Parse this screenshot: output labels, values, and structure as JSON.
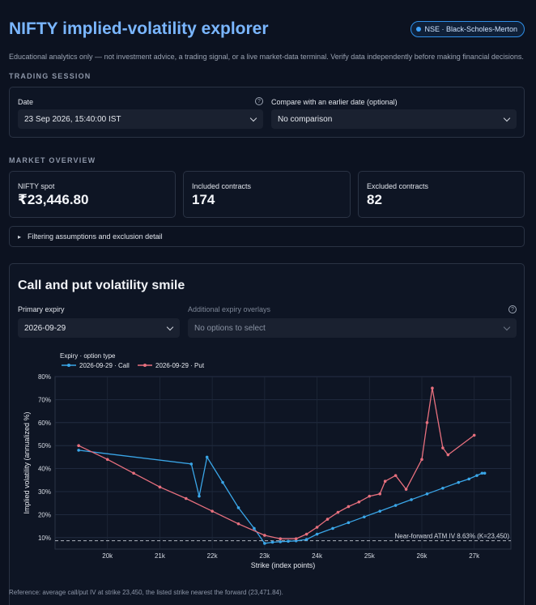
{
  "header": {
    "title": "NIFTY implied-volatility explorer",
    "badge": "NSE · Black-Scholes-Merton",
    "disclaimer": "Educational analytics only — not investment advice, a trading signal, or a live market-data terminal. Verify data independently before making financial decisions."
  },
  "session": {
    "section_label": "TRADING SESSION",
    "date_label": "Date",
    "date_value": "23 Sep 2026, 15:40:00 IST",
    "compare_label": "Compare with an earlier date (optional)",
    "compare_value": "No comparison"
  },
  "overview": {
    "section_label": "MARKET OVERVIEW",
    "metrics": [
      {
        "label": "NIFTY spot",
        "value": "₹23,446.80"
      },
      {
        "label": "Included contracts",
        "value": "174"
      },
      {
        "label": "Excluded contracts",
        "value": "82"
      }
    ],
    "expander": "Filtering assumptions and exclusion detail"
  },
  "smile": {
    "title": "Call and put volatility smile",
    "primary_label": "Primary expiry",
    "primary_value": "2026-09-29",
    "overlay_label": "Additional expiry overlays",
    "overlay_placeholder": "No options to select"
  },
  "chart_data": {
    "type": "line",
    "legend_title": "Expiry · option type",
    "xlabel": "Strike (index points)",
    "ylabel": "Implied volatility (annualized %)",
    "xlim": [
      19000,
      27700
    ],
    "ylim": [
      5,
      80
    ],
    "x_ticks": [
      20000,
      21000,
      22000,
      23000,
      24000,
      25000,
      26000,
      27000
    ],
    "x_tick_labels": [
      "20k",
      "21k",
      "22k",
      "23k",
      "24k",
      "25k",
      "26k",
      "27k"
    ],
    "y_ticks": [
      10,
      20,
      30,
      40,
      50,
      60,
      70,
      80
    ],
    "y_tick_labels": [
      "10%",
      "20%",
      "30%",
      "40%",
      "50%",
      "60%",
      "70%",
      "80%"
    ],
    "grid": true,
    "legend_position": "top-left",
    "reference_line": {
      "value": 8.63,
      "label": "Near-forward ATM IV 8.63% (K=23,450)"
    },
    "series": [
      {
        "name": "2026-09-29 · Call",
        "color": "#3aa6e8",
        "x": [
          19450,
          21600,
          21750,
          21900,
          22200,
          22500,
          22800,
          23000,
          23150,
          23300,
          23450,
          23600,
          23800,
          24000,
          24300,
          24600,
          24900,
          25200,
          25500,
          25800,
          26100,
          26400,
          26700,
          26900,
          27050,
          27150,
          27200
        ],
        "y": [
          48,
          42,
          28,
          45,
          34,
          23,
          14,
          7.5,
          8,
          8.2,
          8.4,
          8.6,
          9.2,
          11.5,
          14,
          16.5,
          19,
          21.5,
          24,
          26.5,
          29,
          31.5,
          34,
          35.5,
          37,
          38,
          38
        ]
      },
      {
        "name": "2026-09-29 · Put",
        "color": "#e8707e",
        "x": [
          19450,
          20000,
          20500,
          21000,
          21500,
          22000,
          22500,
          23000,
          23300,
          23600,
          23800,
          24000,
          24200,
          24400,
          24600,
          24800,
          25000,
          25200,
          25300,
          25500,
          25700,
          26000,
          26100,
          26200,
          26400,
          26500,
          27000
        ],
        "y": [
          50,
          44,
          38,
          32,
          27,
          21.5,
          16,
          11,
          9.5,
          9.5,
          11.5,
          14.5,
          18,
          21,
          23.5,
          25.5,
          28,
          29,
          34.5,
          37,
          31,
          44,
          60,
          75,
          49,
          46,
          54.5
        ]
      }
    ]
  },
  "footnote": "Reference: average call/put IV at strike 23,450, the listed strike nearest the forward (23,471.84)."
}
